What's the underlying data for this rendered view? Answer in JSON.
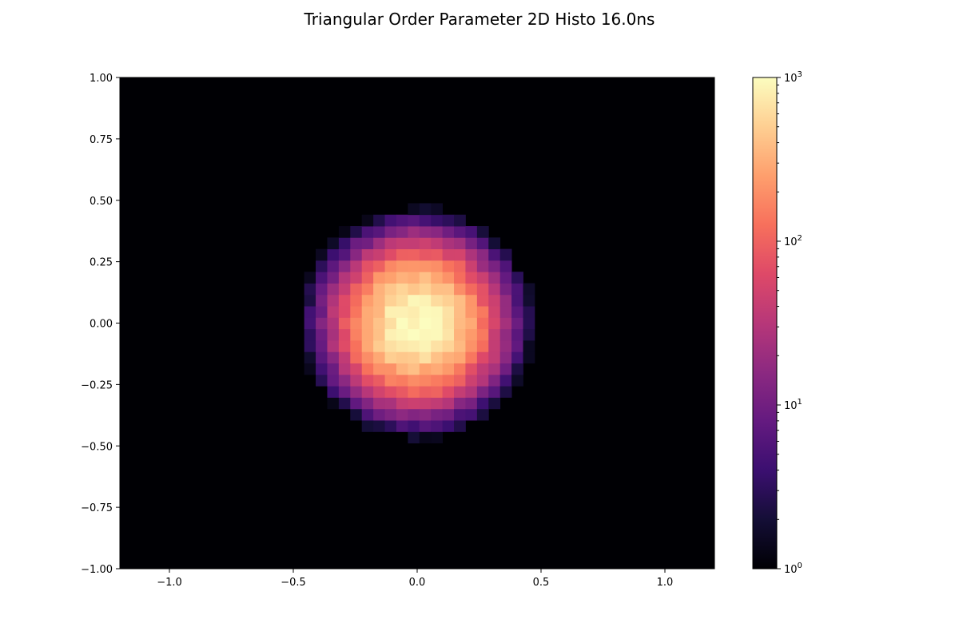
{
  "chart_data": {
    "type": "heatmap",
    "title": "Triangular Order Parameter 2D Histo 16.0ns",
    "xlabel": "",
    "ylabel": "",
    "xlim": [
      -1.2,
      1.2
    ],
    "ylim": [
      -1.0,
      1.0
    ],
    "x_ticks": [
      -1.0,
      -0.5,
      0.0,
      0.5,
      1.0
    ],
    "x_tick_labels": [
      "−1.0",
      "−0.5",
      "0.0",
      "0.5",
      "1.0"
    ],
    "y_ticks": [
      -1.0,
      -0.75,
      -0.5,
      -0.25,
      0.0,
      0.25,
      0.5,
      0.75,
      1.0
    ],
    "y_tick_labels": [
      "−1.00",
      "−0.75",
      "−0.50",
      "−0.25",
      "0.00",
      "0.25",
      "0.50",
      "0.75",
      "1.00"
    ],
    "colormap": "magma",
    "color_scale": "log",
    "colorbar_range": [
      1,
      1000
    ],
    "colorbar_ticks": [
      1,
      10,
      100,
      1000
    ],
    "colorbar_tick_labels": [
      {
        "base": "10",
        "exp": "0"
      },
      {
        "base": "10",
        "exp": "1"
      },
      {
        "base": "10",
        "exp": "2"
      },
      {
        "base": "10",
        "exp": "3"
      }
    ],
    "bins": {
      "x_edges_start": -1.2,
      "x_bin_width": 0.0465,
      "y_edges_start": -1.0,
      "y_bin_width": 0.0465
    },
    "distribution": {
      "center": [
        0.0,
        0.0
      ],
      "sigma": 0.13,
      "peak_count": 1000
    },
    "grid": false,
    "legend": "none"
  }
}
